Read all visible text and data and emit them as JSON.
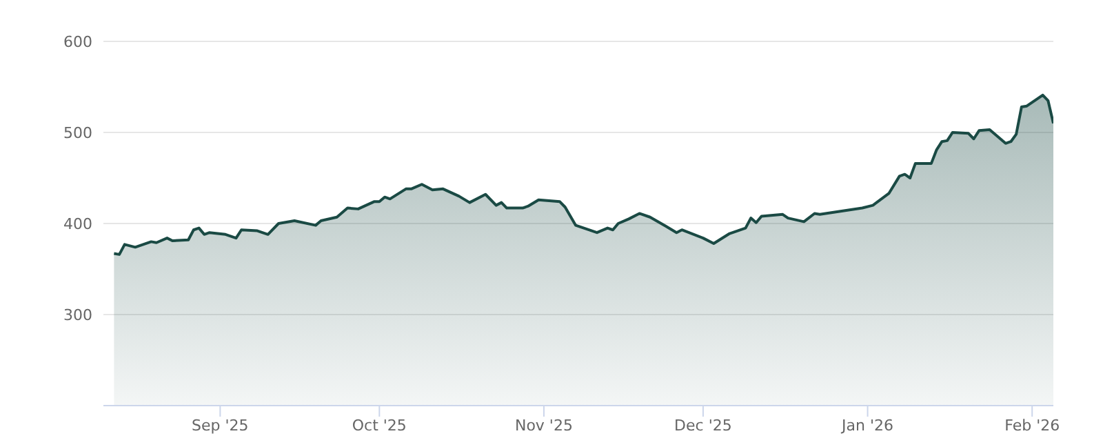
{
  "chart_data": {
    "type": "area",
    "x": [
      "2025-08-12",
      "2025-08-13",
      "2025-08-14",
      "2025-08-16",
      "2025-08-19",
      "2025-08-20",
      "2025-08-22",
      "2025-08-23",
      "2025-08-26",
      "2025-08-27",
      "2025-08-28",
      "2025-08-29",
      "2025-08-30",
      "2025-09-02",
      "2025-09-04",
      "2025-09-05",
      "2025-09-08",
      "2025-09-10",
      "2025-09-12",
      "2025-09-15",
      "2025-09-19",
      "2025-09-20",
      "2025-09-23",
      "2025-09-25",
      "2025-09-27",
      "2025-09-30",
      "2025-10-01",
      "2025-10-02",
      "2025-10-03",
      "2025-10-06",
      "2025-10-07",
      "2025-10-09",
      "2025-10-11",
      "2025-10-13",
      "2025-10-16",
      "2025-10-18",
      "2025-10-21",
      "2025-10-23",
      "2025-10-24",
      "2025-10-25",
      "2025-10-28",
      "2025-10-29",
      "2025-10-31",
      "2025-11-04",
      "2025-11-05",
      "2025-11-07",
      "2025-11-11",
      "2025-11-13",
      "2025-11-14",
      "2025-11-15",
      "2025-11-17",
      "2025-11-19",
      "2025-11-21",
      "2025-11-24",
      "2025-11-26",
      "2025-11-27",
      "2025-12-01",
      "2025-12-03",
      "2025-12-06",
      "2025-12-09",
      "2025-12-10",
      "2025-12-11",
      "2025-12-12",
      "2025-12-16",
      "2025-12-17",
      "2025-12-20",
      "2025-12-22",
      "2025-12-23",
      "2025-12-31",
      "2026-01-02",
      "2026-01-05",
      "2026-01-07",
      "2026-01-08",
      "2026-01-09",
      "2026-01-10",
      "2026-01-13",
      "2026-01-14",
      "2026-01-15",
      "2026-01-16",
      "2026-01-17",
      "2026-01-20",
      "2026-01-21",
      "2026-01-22",
      "2026-01-24",
      "2026-01-27",
      "2026-01-28",
      "2026-01-29",
      "2026-01-30",
      "2026-01-31",
      "2026-02-03",
      "2026-02-04",
      "2026-02-05"
    ],
    "series": [
      {
        "color": "#1a4a44",
        "values": [
          367,
          366,
          377,
          374,
          380,
          379,
          384,
          381,
          382,
          393,
          395,
          388,
          390,
          388,
          384,
          393,
          392,
          388,
          400,
          403,
          398,
          403,
          407,
          417,
          416,
          424,
          424,
          429,
          427,
          438,
          438,
          443,
          437,
          438,
          430,
          423,
          432,
          420,
          423,
          417,
          417,
          419,
          426,
          424,
          418,
          398,
          390,
          395,
          393,
          400,
          405,
          411,
          407,
          397,
          390,
          393,
          384,
          378,
          389,
          395,
          406,
          401,
          408,
          410,
          406,
          402,
          411,
          410,
          417,
          420,
          433,
          452,
          454,
          450,
          466,
          466,
          481,
          490,
          491,
          500,
          499,
          493,
          502,
          503,
          488,
          490,
          498,
          528,
          529,
          541,
          535,
          510
        ]
      }
    ],
    "xlim": [
      "2025-08-10",
      "2026-02-05"
    ],
    "xticks": [
      {
        "value": "2025-09-01",
        "label": "Sep '25"
      },
      {
        "value": "2025-10-01",
        "label": "Oct '25"
      },
      {
        "value": "2025-11-01",
        "label": "Nov '25"
      },
      {
        "value": "2025-12-01",
        "label": "Dec '25"
      },
      {
        "value": "2026-01-01",
        "label": "Jan '26"
      },
      {
        "value": "2026-02-01",
        "label": "Feb '26"
      }
    ],
    "ylim": [
      200,
      600
    ],
    "yticks": [
      300,
      400,
      500,
      600
    ],
    "grid": "y"
  }
}
